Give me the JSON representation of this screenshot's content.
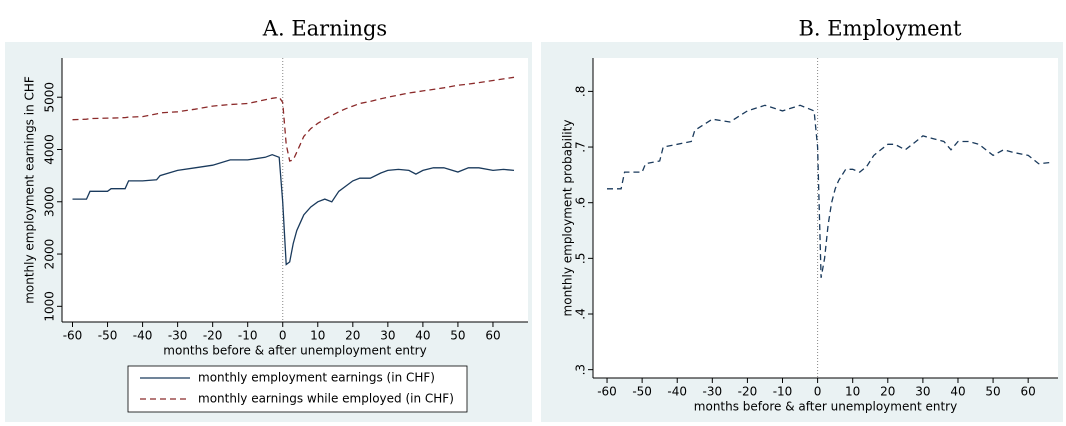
{
  "chart_data": [
    {
      "type": "line",
      "title": "A. Earnings",
      "xlabel": "months before & after unemployment entry",
      "ylabel": "monthly employment earnings in CHF",
      "x": [
        -60,
        -56,
        -55,
        -50,
        -49,
        -45,
        -44,
        -40,
        -36,
        -35,
        -30,
        -25,
        -20,
        -15,
        -10,
        -5,
        -3,
        -1,
        0,
        1,
        2,
        3,
        4,
        5,
        6,
        8,
        10,
        12,
        14,
        16,
        18,
        20,
        22,
        25,
        28,
        30,
        33,
        36,
        38,
        40,
        43,
        46,
        50,
        53,
        56,
        60,
        63,
        66
      ],
      "series": [
        {
          "name": "monthly employment earnings (in CHF)",
          "color": "#1a3a5c",
          "dashed": false,
          "values": [
            3050,
            3050,
            3200,
            3200,
            3250,
            3250,
            3400,
            3400,
            3420,
            3500,
            3600,
            3650,
            3700,
            3800,
            3800,
            3850,
            3900,
            3850,
            3000,
            1800,
            1850,
            2200,
            2450,
            2600,
            2750,
            2900,
            3000,
            3050,
            3000,
            3200,
            3300,
            3400,
            3450,
            3450,
            3550,
            3600,
            3620,
            3600,
            3530,
            3600,
            3650,
            3650,
            3570,
            3650,
            3650,
            3600,
            3620,
            3600
          ]
        },
        {
          "name": "monthly earnings while employed (in CHF)",
          "color": "#8b2a2a",
          "dashed": true,
          "values": [
            4570,
            4580,
            4590,
            4600,
            4600,
            4610,
            4620,
            4630,
            4680,
            4700,
            4720,
            4770,
            4830,
            4860,
            4880,
            4950,
            4980,
            5000,
            4900,
            4100,
            3780,
            3800,
            3950,
            4100,
            4250,
            4400,
            4500,
            4580,
            4650,
            4720,
            4780,
            4830,
            4880,
            4920,
            4970,
            5000,
            5040,
            5080,
            5100,
            5120,
            5150,
            5180,
            5230,
            5250,
            5280,
            5320,
            5350,
            5380
          ]
        }
      ],
      "xlim": [
        -63,
        70
      ],
      "xticks": [
        -60,
        -50,
        -40,
        -30,
        -20,
        -10,
        0,
        10,
        20,
        30,
        40,
        50,
        60
      ],
      "ylim": [
        700,
        5750
      ],
      "yticks": [
        1000,
        2000,
        3000,
        4000,
        5000
      ],
      "vline": 0,
      "legend": "bottom"
    },
    {
      "type": "line",
      "title": "B. Employment",
      "xlabel": "months before & after unemployment entry",
      "ylabel": "monthly employment probability",
      "x": [
        -60,
        -56,
        -55,
        -50,
        -49,
        -45,
        -44,
        -40,
        -36,
        -35,
        -30,
        -25,
        -20,
        -15,
        -10,
        -5,
        -3,
        -1,
        0,
        1,
        2,
        3,
        4,
        5,
        6,
        8,
        10,
        12,
        14,
        16,
        18,
        20,
        22,
        25,
        28,
        30,
        33,
        36,
        38,
        40,
        43,
        46,
        50,
        53,
        56,
        60,
        63,
        66
      ],
      "series": [
        {
          "color": "#1a3a5c",
          "dashed": true,
          "values": [
            0.625,
            0.625,
            0.655,
            0.655,
            0.67,
            0.675,
            0.7,
            0.705,
            0.71,
            0.73,
            0.75,
            0.745,
            0.765,
            0.775,
            0.765,
            0.775,
            0.77,
            0.765,
            0.7,
            0.465,
            0.5,
            0.56,
            0.6,
            0.625,
            0.64,
            0.66,
            0.66,
            0.655,
            0.665,
            0.685,
            0.695,
            0.705,
            0.705,
            0.695,
            0.71,
            0.72,
            0.715,
            0.71,
            0.695,
            0.71,
            0.71,
            0.705,
            0.685,
            0.695,
            0.69,
            0.685,
            0.67,
            0.672
          ]
        }
      ],
      "xlim": [
        -64,
        68.5
      ],
      "xticks": [
        -60,
        -50,
        -40,
        -30,
        -20,
        -10,
        0,
        10,
        20,
        30,
        40,
        50,
        60
      ],
      "ylim": [
        0.285,
        0.86
      ],
      "yticks": [
        {
          "value": 0.3,
          "label": ".3"
        },
        {
          "value": 0.4,
          "label": ".4"
        },
        {
          "value": 0.5,
          "label": ".5"
        },
        {
          "value": 0.6,
          "label": ".6"
        },
        {
          "value": 0.7,
          "label": ".7"
        },
        {
          "value": 0.8,
          "label": ".8"
        }
      ],
      "vline": 0
    }
  ]
}
